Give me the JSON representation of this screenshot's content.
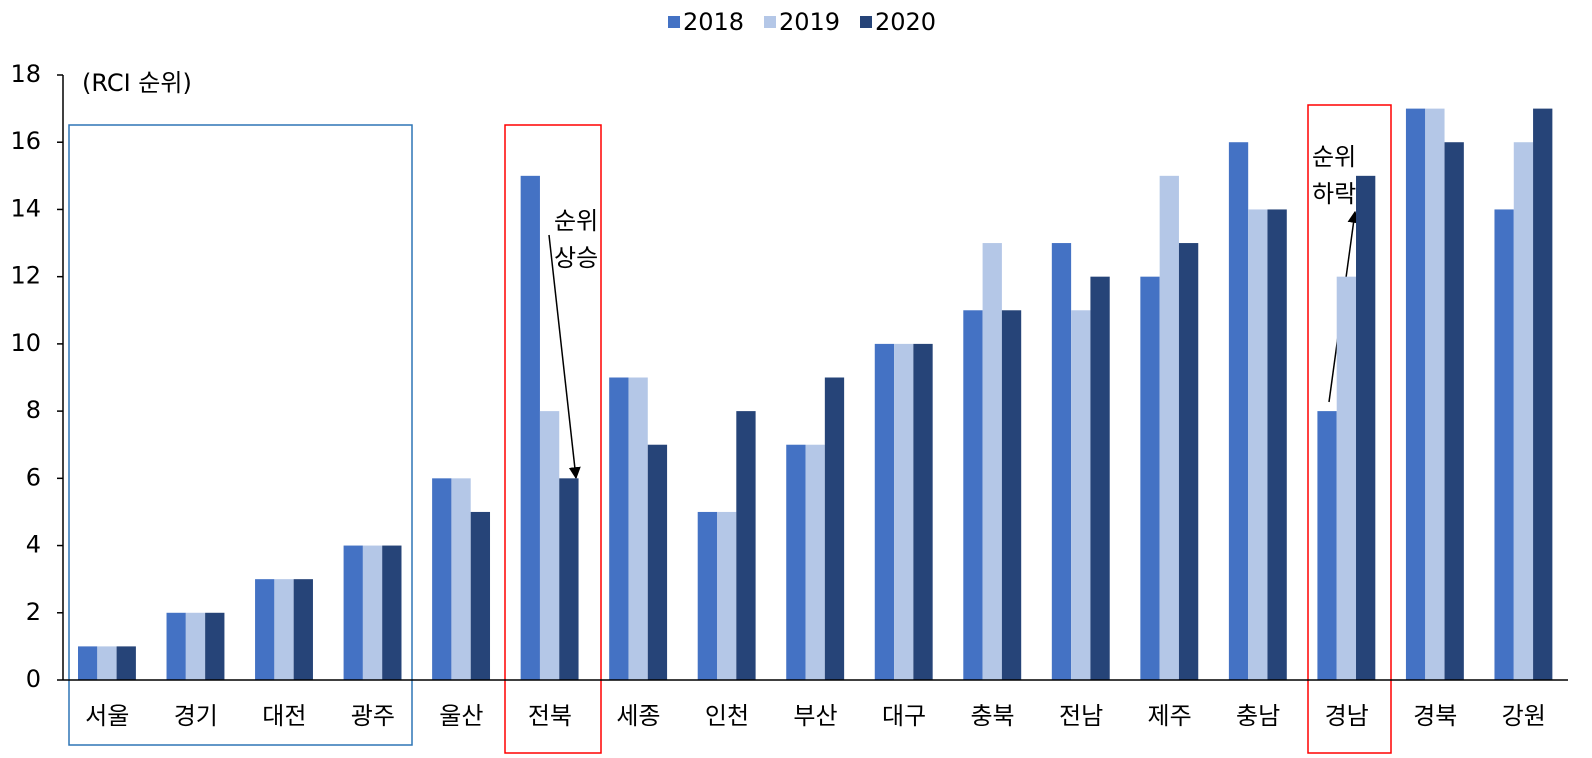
{
  "chart_data": {
    "type": "bar",
    "y_label": "(RCI 순위)",
    "categories": [
      "서울",
      "경기",
      "대전",
      "광주",
      "울산",
      "전북",
      "세종",
      "인천",
      "부산",
      "대구",
      "충북",
      "전남",
      "제주",
      "충남",
      "경남",
      "경북",
      "강원"
    ],
    "series": [
      {
        "name": "2018",
        "color": "#4472c4",
        "values": [
          1,
          2,
          3,
          4,
          6,
          15,
          9,
          5,
          7,
          10,
          11,
          13,
          12,
          16,
          8,
          17,
          14
        ]
      },
      {
        "name": "2019",
        "color": "#b4c7e7",
        "values": [
          1,
          2,
          3,
          4,
          6,
          8,
          9,
          5,
          7,
          10,
          13,
          11,
          15,
          14,
          12,
          17,
          16
        ]
      },
      {
        "name": "2020",
        "color": "#264478",
        "values": [
          1,
          2,
          3,
          4,
          5,
          6,
          7,
          8,
          9,
          10,
          11,
          12,
          13,
          14,
          15,
          16,
          17
        ]
      }
    ],
    "ylim": [
      0,
      18
    ],
    "yticks": [
      0,
      2,
      4,
      6,
      8,
      10,
      12,
      14,
      16,
      18
    ],
    "legend": "top",
    "annotations": [
      {
        "lines": [
          "순위",
          "상승"
        ]
      },
      {
        "lines": [
          "순위",
          "하락"
        ]
      }
    ]
  }
}
